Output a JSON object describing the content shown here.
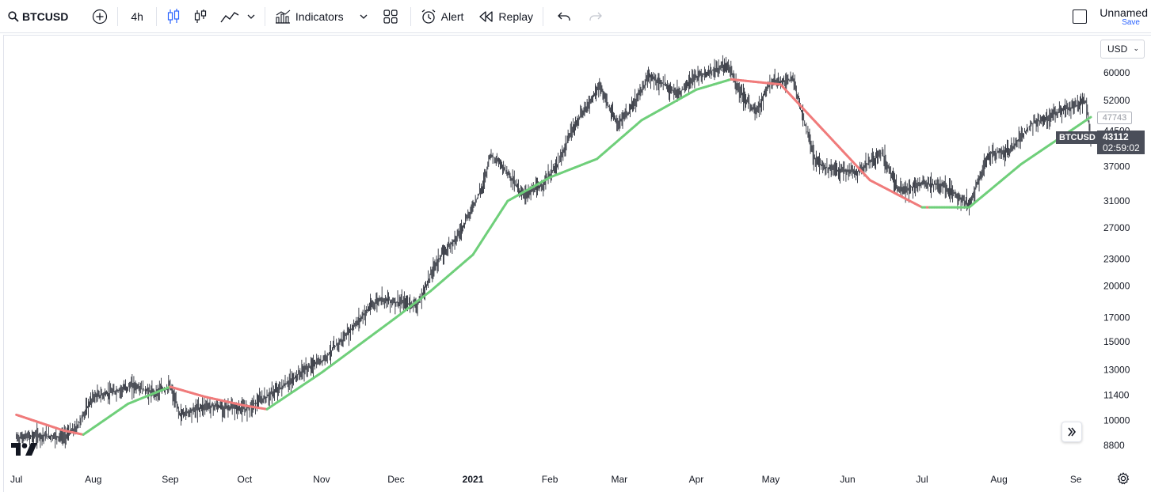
{
  "toolbar": {
    "symbol": "BTCUSD",
    "interval": "4h",
    "indicators_label": "Indicators",
    "alert_label": "Alert",
    "replay_label": "Replay",
    "layout_name": "Unnamed",
    "save_label": "Save"
  },
  "chart": {
    "currency": "USD",
    "symbol_tag": "BTCUSD",
    "last_price": "43112",
    "countdown": "02:59:02",
    "ma_value": "47743",
    "price_labels": [
      "60000",
      "52000",
      "44500",
      "37000",
      "31000",
      "27000",
      "23000",
      "20000",
      "17000",
      "15000",
      "13000",
      "11400",
      "10000",
      "8800"
    ],
    "time_labels": [
      "Jul",
      "Aug",
      "Sep",
      "Oct",
      "Nov",
      "Dec",
      "2021",
      "Feb",
      "Mar",
      "Apr",
      "May",
      "Jun",
      "Jul",
      "Aug",
      "Se"
    ],
    "colors": {
      "ma_up": "#6fcf7a",
      "ma_down": "#f07b7b",
      "candles": "#131722"
    }
  },
  "chart_data": {
    "type": "line",
    "scale": "log",
    "xlabel": "",
    "ylabel": "",
    "ylim": [
      8000,
      66000
    ],
    "series": [
      {
        "x": [
          "2020-07-01",
          "2020-07-10",
          "2020-07-20",
          "2020-07-25",
          "2020-08-01",
          "2020-08-10",
          "2020-08-17",
          "2020-08-25",
          "2020-09-01",
          "2020-09-05",
          "2020-09-15",
          "2020-09-25",
          "2020-10-01",
          "2020-10-10",
          "2020-10-20",
          "2020-10-25",
          "2020-11-01",
          "2020-11-10",
          "2020-11-20",
          "2020-11-25",
          "2020-12-01",
          "2020-12-10",
          "2020-12-17",
          "2020-12-27",
          "2021-01-05",
          "2021-01-08",
          "2021-01-15",
          "2021-01-21",
          "2021-01-28",
          "2021-02-05",
          "2021-02-10",
          "2021-02-21",
          "2021-02-28",
          "2021-03-05",
          "2021-03-13",
          "2021-03-25",
          "2021-04-01",
          "2021-04-14",
          "2021-04-18",
          "2021-04-25",
          "2021-05-01",
          "2021-05-10",
          "2021-05-13",
          "2021-05-19",
          "2021-05-25",
          "2021-06-05",
          "2021-06-15",
          "2021-06-22",
          "2021-07-01",
          "2021-07-10",
          "2021-07-20",
          "2021-07-28",
          "2021-08-05",
          "2021-08-14",
          "2021-08-25",
          "2021-09-05",
          "2021-09-07"
        ],
        "values": [
          9150,
          9250,
          9200,
          9600,
          11300,
          11600,
          12000,
          11500,
          11900,
          10300,
          10800,
          10700,
          10600,
          11300,
          12300,
          13000,
          13600,
          15300,
          17800,
          18800,
          18400,
          18200,
          22500,
          26500,
          33500,
          39500,
          36000,
          32000,
          33200,
          38000,
          44800,
          56000,
          46000,
          49000,
          59000,
          54000,
          58800,
          62500,
          55000,
          49000,
          57000,
          58000,
          50000,
          38000,
          36500,
          36000,
          39800,
          32500,
          34000,
          33500,
          30500,
          39500,
          40000,
          46000,
          49000,
          51500,
          43112
        ]
      }
    ],
    "moving_average": {
      "x": [
        "2020-07-01",
        "2020-07-20",
        "2020-07-28",
        "2020-08-15",
        "2020-09-01",
        "2020-09-15",
        "2020-10-01",
        "2020-10-10",
        "2020-11-01",
        "2020-12-01",
        "2020-12-15",
        "2021-01-01",
        "2021-01-15",
        "2021-02-01",
        "2021-02-20",
        "2021-03-10",
        "2021-04-01",
        "2021-04-15",
        "2021-05-05",
        "2021-05-20",
        "2021-06-10",
        "2021-07-01",
        "2021-07-20",
        "2021-08-10",
        "2021-09-07"
      ],
      "values": [
        10300,
        9500,
        9300,
        10900,
        11900,
        11300,
        10800,
        10600,
        12800,
        17000,
        19500,
        23500,
        31000,
        35000,
        38500,
        47000,
        55000,
        58000,
        56500,
        46000,
        34500,
        30000,
        30000,
        37500,
        47743
      ]
    }
  }
}
